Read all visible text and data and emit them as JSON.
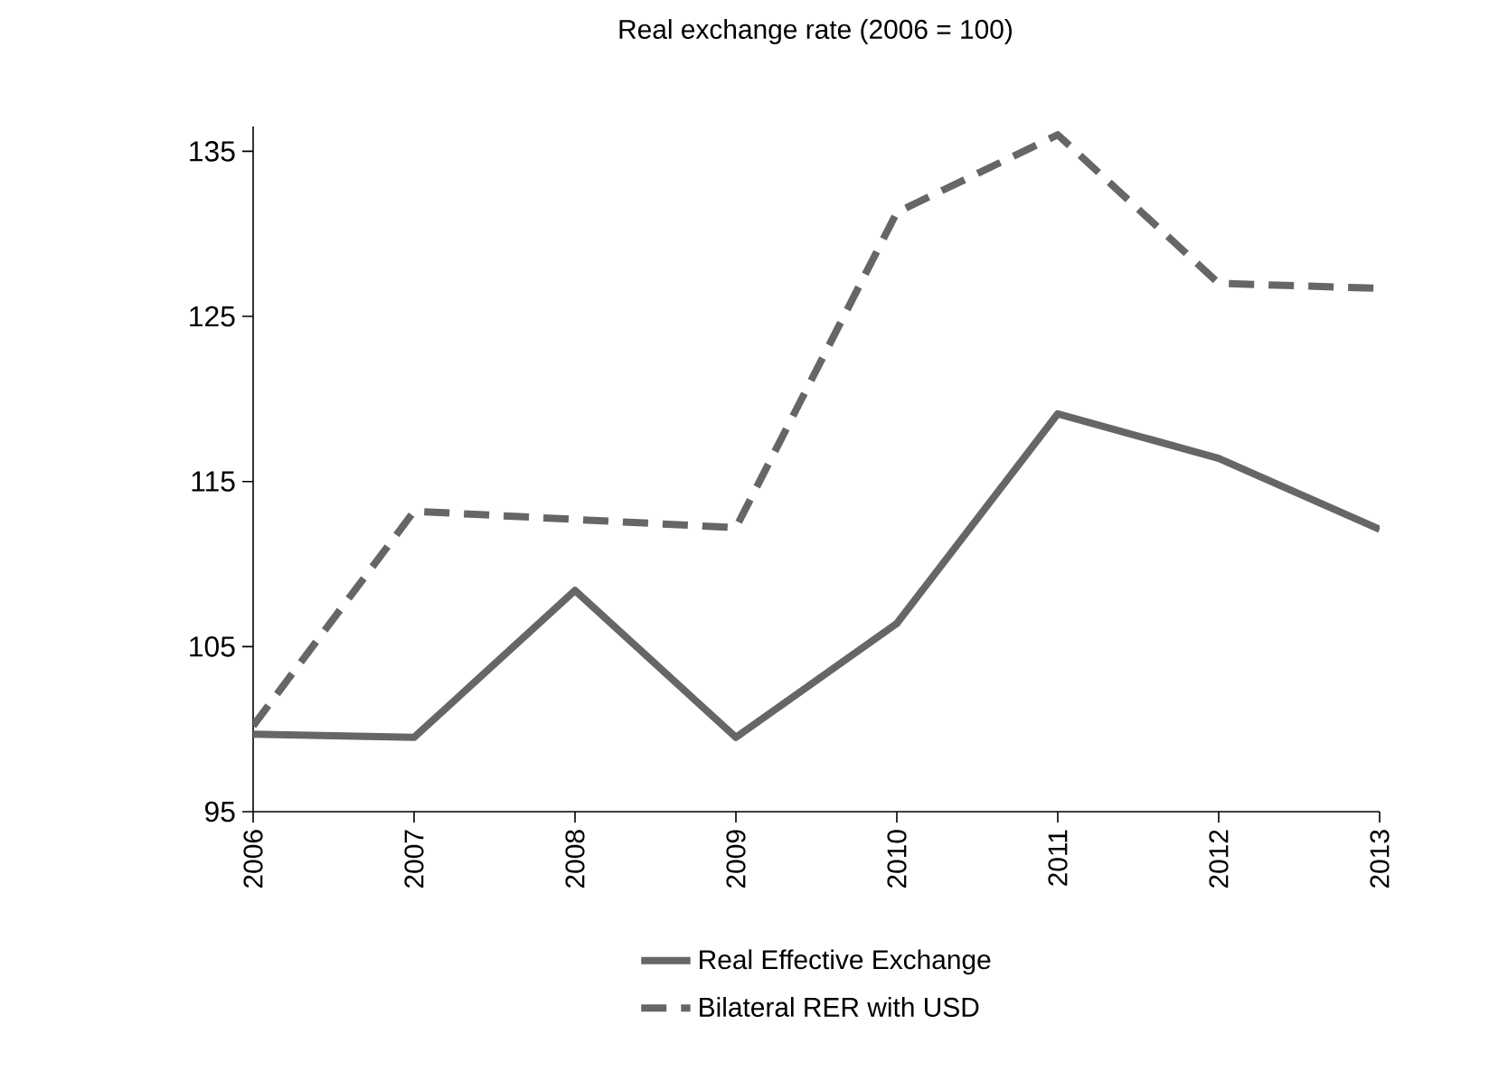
{
  "chart_data": {
    "type": "line",
    "title": "Real exchange rate (2006 = 100)",
    "categories": [
      "2006",
      "2007",
      "2008",
      "2009",
      "2010",
      "2011",
      "2012",
      "2013"
    ],
    "series": [
      {
        "name": "Real Effective Exchange",
        "color": "#666666",
        "line_style": "solid",
        "values": [
          99.7,
          99.5,
          108.4,
          99.5,
          106.4,
          119.1,
          116.4,
          112.1
        ]
      },
      {
        "name": "Bilateral RER with USD",
        "color": "#666666",
        "line_style": "dashed",
        "values": [
          100.2,
          113.2,
          112.7,
          112.2,
          131.3,
          136.0,
          127.0,
          126.7
        ]
      }
    ],
    "ylim": [
      95,
      136.5
    ],
    "yticks": [
      95,
      105,
      115,
      125,
      135
    ],
    "grid": false,
    "legend": "bottom",
    "marker": "none"
  }
}
